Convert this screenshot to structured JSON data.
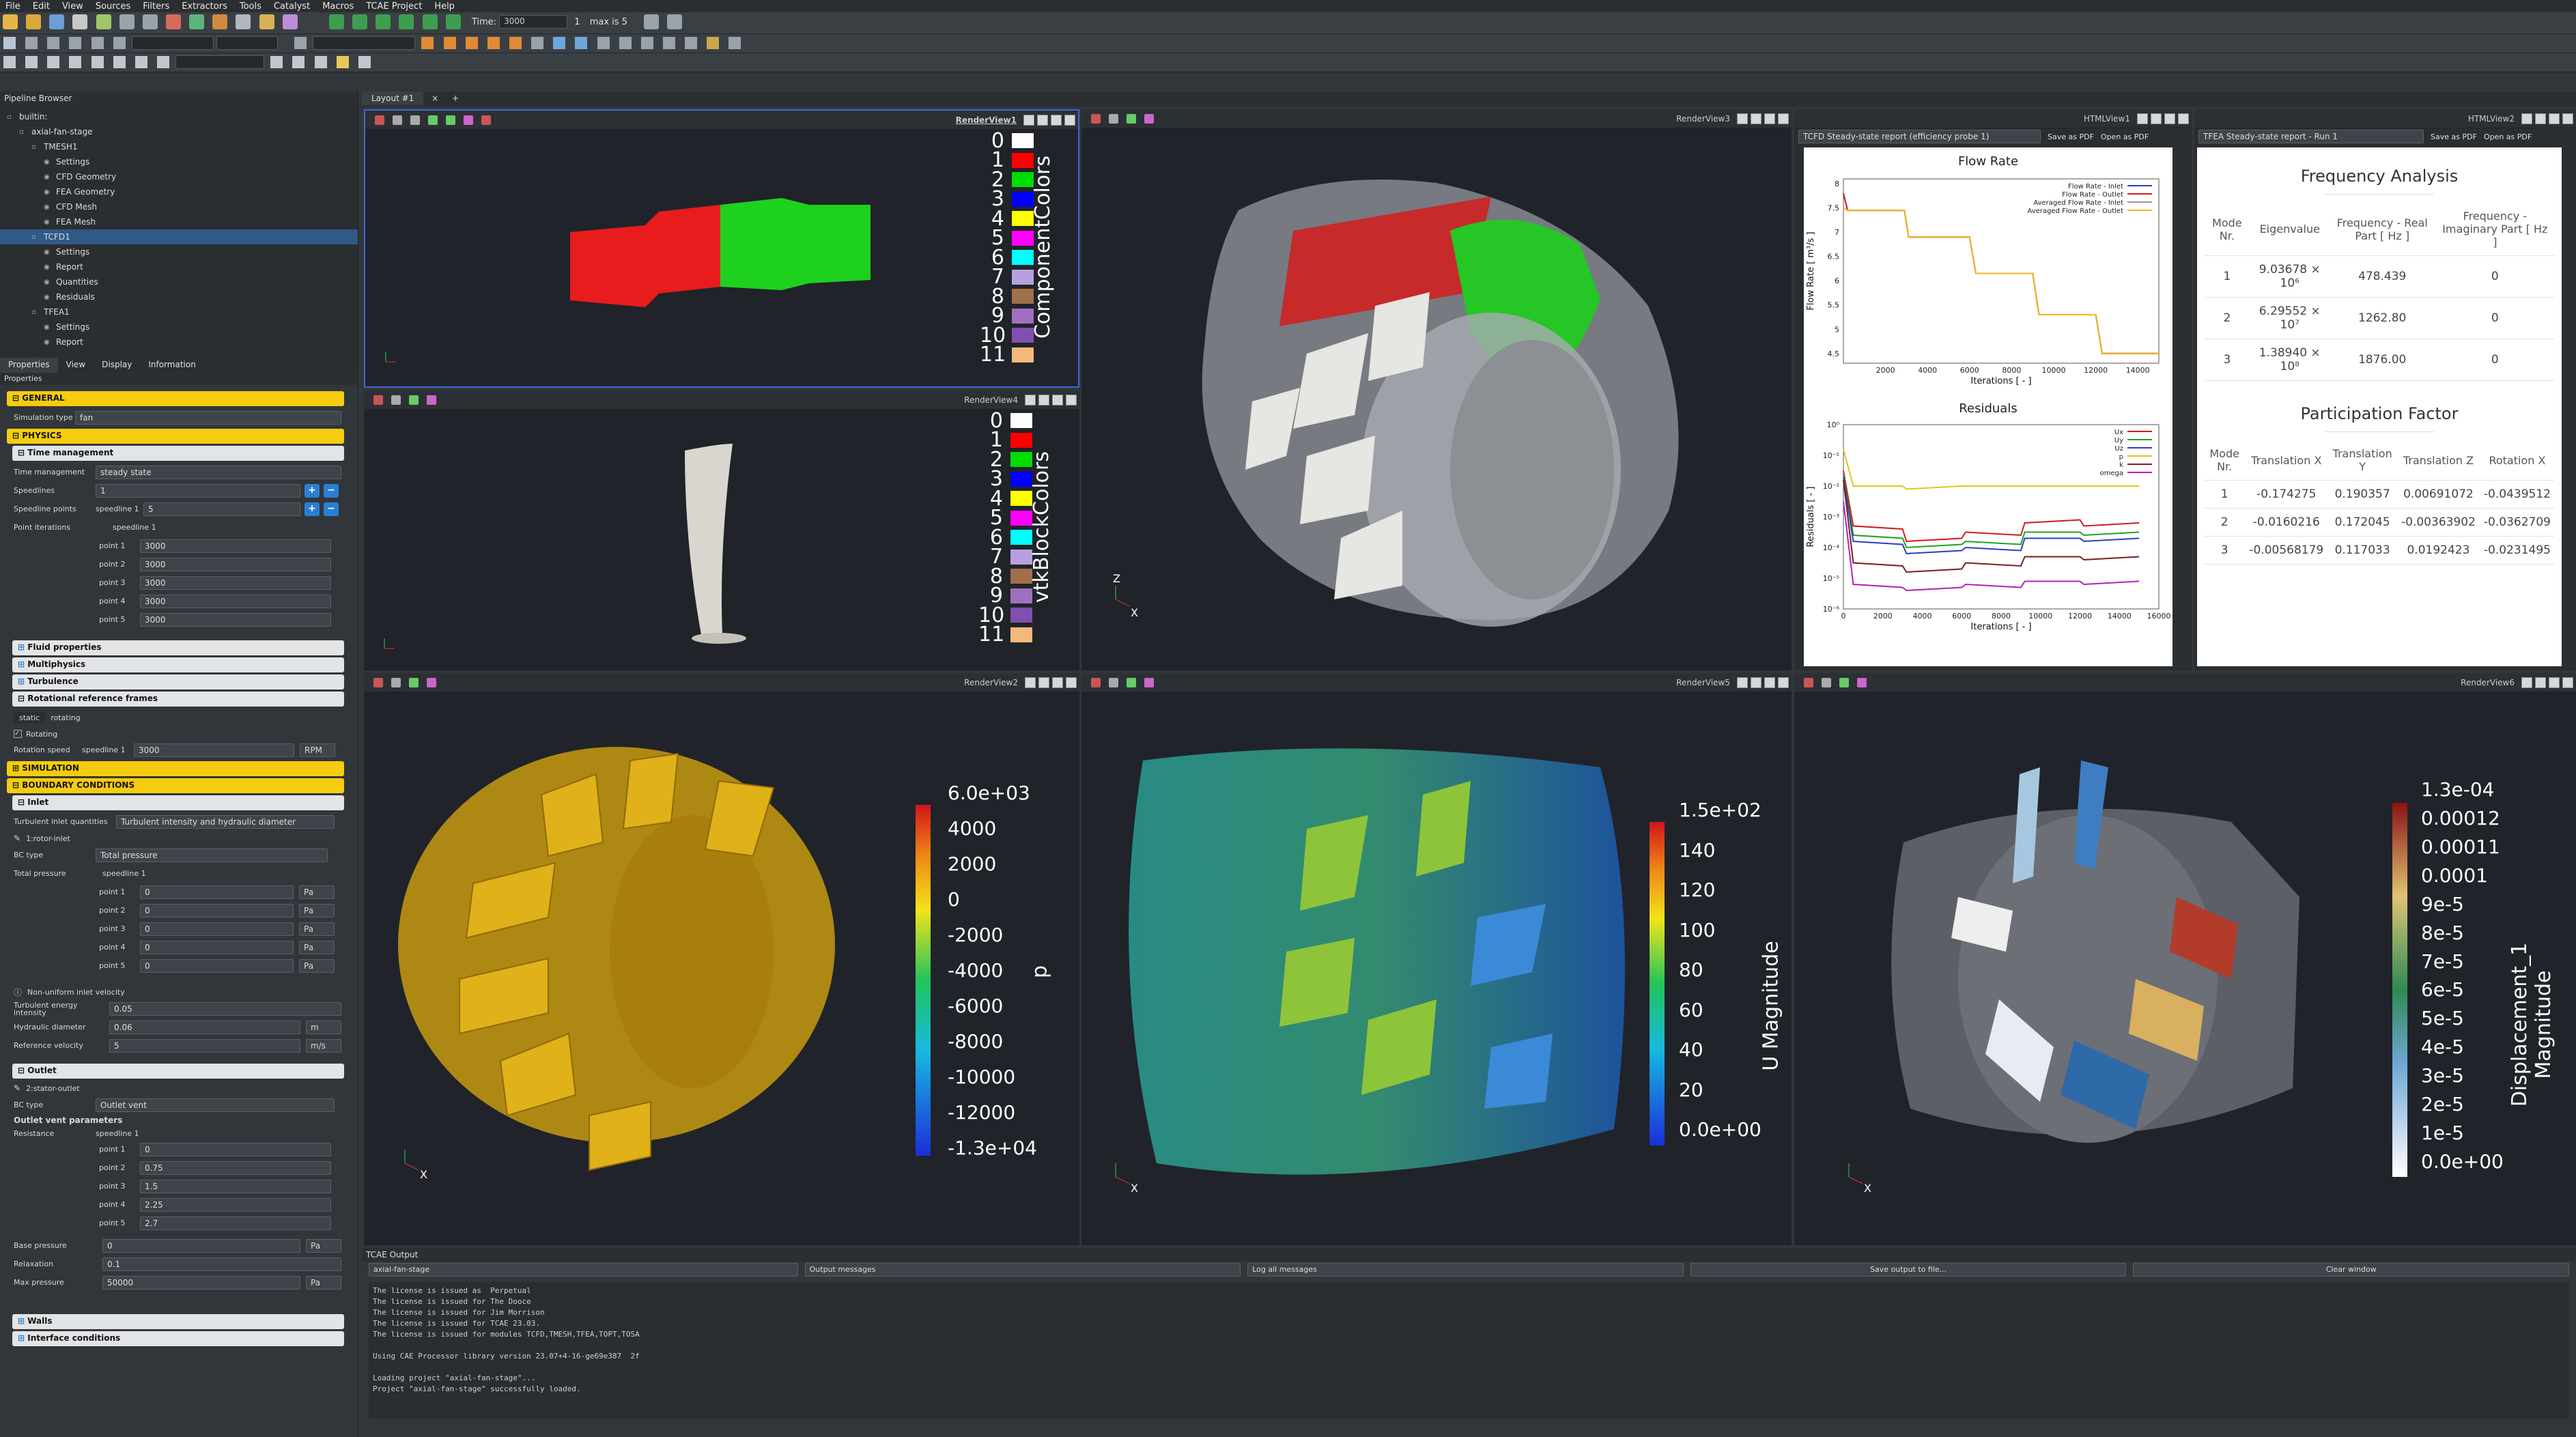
{
  "menu": [
    "File",
    "Edit",
    "View",
    "Sources",
    "Filters",
    "Extractors",
    "Tools",
    "Catalyst",
    "Macros",
    "TCAE Project",
    "Help"
  ],
  "toolbar": {
    "time_label": "Time:",
    "time_value": "3000",
    "time_index": "1",
    "time_max": "max is 5"
  },
  "pipeline": {
    "title": "Pipeline Browser",
    "items": [
      {
        "label": "builtin:",
        "indent": 0
      },
      {
        "label": "axial-fan-stage",
        "indent": 1
      },
      {
        "label": "TMESH1",
        "indent": 2
      },
      {
        "label": "Settings",
        "indent": 3
      },
      {
        "label": "CFD Geometry",
        "indent": 3
      },
      {
        "label": "FEA Geometry",
        "indent": 3
      },
      {
        "label": "CFD Mesh",
        "indent": 3
      },
      {
        "label": "FEA Mesh",
        "indent": 3
      },
      {
        "label": "TCFD1",
        "indent": 2
      },
      {
        "label": "Settings",
        "indent": 3
      },
      {
        "label": "Report",
        "indent": 3
      },
      {
        "label": "Quantities",
        "indent": 3
      },
      {
        "label": "Residuals",
        "indent": 3
      },
      {
        "label": "TFEA1",
        "indent": 2
      },
      {
        "label": "Settings",
        "indent": 3
      },
      {
        "label": "Report",
        "indent": 3
      }
    ]
  },
  "tabs": {
    "items": [
      "Properties",
      "View",
      "Display",
      "Information"
    ],
    "sub": "Properties"
  },
  "props": {
    "general": "GENERAL",
    "sim_type_label": "Simulation type",
    "sim_type": "fan",
    "physics": "PHYSICS",
    "time_mgmt_section": "Time management",
    "time_mgmt_label": "Time management",
    "time_mgmt": "steady state",
    "speedlines_label": "Speedlines",
    "speedlines_value": "1",
    "speedline_points_label": "Speedline points",
    "speedline1_label": "speedline 1",
    "speedline1_value": "5",
    "point_iterations_label": "Point iterations",
    "pi_speedline": "speedline 1",
    "points": [
      {
        "label": "point 1",
        "value": "3000"
      },
      {
        "label": "point 2",
        "value": "3000"
      },
      {
        "label": "point 3",
        "value": "3000"
      },
      {
        "label": "point 4",
        "value": "3000"
      },
      {
        "label": "point 5",
        "value": "3000"
      }
    ],
    "fluid": "Fluid properties",
    "multiphysics": "Multiphysics",
    "turbulence": "Turbulence",
    "rrf": "Rotational reference frames",
    "static": "static",
    "rotating": "rotating",
    "rotating_check": "Rotating",
    "rotation_speed_label": "Rotation speed",
    "rs_speedline": "speedline 1",
    "rs_value": "3000",
    "rs_unit": "RPM",
    "simulation": "SIMULATION",
    "boundary": "BOUNDARY CONDITIONS",
    "inlet": "Inlet",
    "turb_inlet_label": "Turbulent inlet quantities",
    "turb_inlet": "Turbulent intensity and hydraulic diameter",
    "rotor_inlet": "1:rotor-inlet",
    "bc_type_label": "BC type",
    "bc_type": "Total pressure",
    "total_pressure_label": "Total pressure",
    "tp_speedline": "speedline 1",
    "tp_points": [
      {
        "label": "point 1",
        "value": "0"
      },
      {
        "label": "point 2",
        "value": "0"
      },
      {
        "label": "point 3",
        "value": "0"
      },
      {
        "label": "point 4",
        "value": "0"
      },
      {
        "label": "point 5",
        "value": "0"
      }
    ],
    "pa": "Pa",
    "non_uniform": "Non-uniform inlet velocity",
    "tei_label": "Turbulent energy intensity",
    "tei": "0.05",
    "hd_label": "Hydraulic diameter",
    "hd": "0.06",
    "hd_unit": "m",
    "rv_label": "Reference velocity",
    "rv": "5",
    "rv_unit": "m/s",
    "outlet": "Outlet",
    "stator_outlet": "2:stator-outlet",
    "bc_type2": "Outlet vent",
    "ovp": "Outlet vent parameters",
    "resistance": "Resistance",
    "res_speedline": "speedline 1",
    "res_points": [
      {
        "label": "point 1",
        "value": "0"
      },
      {
        "label": "point 2",
        "value": "0.75"
      },
      {
        "label": "point 3",
        "value": "1.5"
      },
      {
        "label": "point 4",
        "value": "2.25"
      },
      {
        "label": "point 5",
        "value": "2.7"
      }
    ],
    "base_pressure_label": "Base pressure",
    "base_pressure": "0",
    "relaxation_label": "Relaxation",
    "relaxation": "0.1",
    "max_pressure_label": "Max pressure",
    "max_pressure": "50000",
    "walls": "Walls",
    "interface": "Interface conditions"
  },
  "layout_tab": "Layout #1",
  "views": {
    "rv1": "RenderView1",
    "rv3": "RenderView3",
    "rv4": "RenderView4",
    "rv2": "RenderView2",
    "rv5": "RenderView5",
    "rv6": "RenderView6",
    "html1": "HTMLView1",
    "html2": "HTMLView2"
  },
  "component_legend": {
    "title": "ComponentColors",
    "entries": [
      "0",
      "1",
      "2",
      "3",
      "4",
      "5",
      "6",
      "7",
      "8",
      "9",
      "10",
      "11"
    ],
    "colors": [
      "#ffffff",
      "#ff0000",
      "#00dd00",
      "#0000ff",
      "#ffff00",
      "#ff00ff",
      "#00ffff",
      "#b8a0e0",
      "#a0704a",
      "#a070c0",
      "#7f50b0",
      "#f4b87a"
    ]
  },
  "block_legend": {
    "title": "vtkBlockColors",
    "entries": [
      "0",
      "1",
      "2",
      "3",
      "4",
      "5",
      "6",
      "7",
      "8",
      "9",
      "10",
      "11"
    ]
  },
  "colorbar_p": {
    "title": "p",
    "labels": [
      "6.0e+03",
      "4000",
      "2000",
      "0",
      "-2000",
      "-4000",
      "-6000",
      "-8000",
      "-10000",
      "-12000",
      "-1.3e+04"
    ]
  },
  "colorbar_u": {
    "title": "U Magnitude",
    "labels": [
      "1.5e+02",
      "140",
      "120",
      "100",
      "80",
      "60",
      "40",
      "20",
      "0.0e+00"
    ]
  },
  "colorbar_d": {
    "title": "Displacement_1 Magnitude",
    "labels": [
      "1.3e-04",
      "0.00012",
      "0.00011",
      "0.0001",
      "9e-5",
      "8e-5",
      "7e-5",
      "6e-5",
      "5e-5",
      "4e-5",
      "3e-5",
      "2e-5",
      "1e-5",
      "0.0e+00"
    ]
  },
  "tcfd_report": {
    "select": "TCFD Steady-state report (efficiency probe 1)",
    "save": "Save as PDF",
    "open": "Open as PDF",
    "flow_title": "Flow Rate",
    "flow_ylabel": "Flow Rate [ m³/s ]",
    "flow_xlabel": "Iterations [ - ]",
    "flow_legend": [
      "Flow Rate - Inlet",
      "Flow Rate - Outlet",
      "Averaged Flow Rate - Inlet",
      "Averaged Flow Rate - Outlet"
    ],
    "flow_yticks": [
      "8",
      "7.5",
      "7",
      "6.5",
      "6",
      "5.5",
      "5",
      "4.5"
    ],
    "flow_xticks": [
      "2000",
      "4000",
      "6000",
      "8000",
      "10000",
      "12000",
      "14000"
    ],
    "res_title": "Residuals",
    "res_ylabel": "Residuals [ - ]",
    "res_xlabel": "Iterations [ - ]",
    "res_legend": [
      "Ux",
      "Uy",
      "Uz",
      "p",
      "k",
      "omega"
    ],
    "res_yticks": [
      "10⁰",
      "10⁻¹",
      "10⁻²",
      "10⁻³",
      "10⁻⁴",
      "10⁻⁵",
      "10⁻⁶"
    ],
    "res_xticks": [
      "0",
      "2000",
      "4000",
      "6000",
      "8000",
      "10000",
      "12000",
      "14000",
      "16000"
    ]
  },
  "chart_data": [
    {
      "type": "line",
      "title": "Flow Rate",
      "xlabel": "Iterations [ - ]",
      "ylabel": "Flow Rate [ m³/s ]",
      "xlim": [
        0,
        15000
      ],
      "ylim": [
        4.3,
        8.1
      ],
      "series": [
        {
          "name": "Flow Rate - Inlet",
          "x": [
            0,
            200,
            1500,
            2900,
            3100,
            6000,
            6300,
            9000,
            9300,
            12000,
            12300,
            15000
          ],
          "y": [
            7.8,
            7.45,
            7.45,
            7.45,
            6.9,
            6.9,
            6.15,
            6.15,
            5.3,
            5.3,
            4.5,
            4.5
          ]
        },
        {
          "name": "Flow Rate - Outlet",
          "x": [
            0,
            200,
            1500,
            2900,
            3100,
            6000,
            6300,
            9000,
            9300,
            12000,
            12300,
            15000
          ],
          "y": [
            7.8,
            7.45,
            7.45,
            7.45,
            6.9,
            6.9,
            6.15,
            6.15,
            5.3,
            5.3,
            4.5,
            4.5
          ]
        },
        {
          "name": "Averaged Flow Rate - Inlet",
          "x": [
            0,
            200,
            1500,
            2900,
            3100,
            6000,
            6300,
            9000,
            9300,
            12000,
            12300,
            15000
          ],
          "y": [
            7.5,
            7.45,
            7.45,
            7.45,
            6.9,
            6.9,
            6.15,
            6.15,
            5.3,
            5.3,
            4.5,
            4.5
          ]
        },
        {
          "name": "Averaged Flow Rate - Outlet",
          "x": [
            0,
            200,
            1500,
            2900,
            3100,
            6000,
            6300,
            9000,
            9300,
            12000,
            12300,
            15000
          ],
          "y": [
            7.5,
            7.45,
            7.45,
            7.45,
            6.9,
            6.9,
            6.15,
            6.15,
            5.3,
            5.3,
            4.5,
            4.5
          ]
        }
      ]
    },
    {
      "type": "line",
      "title": "Residuals",
      "xlabel": "Iterations [ - ]",
      "ylabel": "Residuals [ - ]",
      "xlim": [
        0,
        16000
      ],
      "ylim": [
        -6,
        0
      ],
      "yscale": "log",
      "series": [
        {
          "name": "Ux",
          "x": [
            0,
            500,
            3000,
            3200,
            6000,
            6200,
            9000,
            9200,
            12000,
            12200,
            15000
          ],
          "y": [
            -1.5,
            -3.3,
            -3.4,
            -3.8,
            -3.7,
            -3.5,
            -3.6,
            -3.2,
            -3.1,
            -3.3,
            -3.2
          ]
        },
        {
          "name": "Uy",
          "x": [
            0,
            500,
            3000,
            3200,
            6000,
            6200,
            9000,
            9200,
            12000,
            12200,
            15000
          ],
          "y": [
            -1.6,
            -3.6,
            -3.7,
            -4.0,
            -3.9,
            -3.8,
            -3.9,
            -3.5,
            -3.5,
            -3.6,
            -3.5
          ]
        },
        {
          "name": "Uz",
          "x": [
            0,
            500,
            3000,
            3200,
            6000,
            6200,
            9000,
            9200,
            12000,
            12200,
            15000
          ],
          "y": [
            -1.7,
            -3.8,
            -3.9,
            -4.2,
            -4.1,
            -4.0,
            -4.1,
            -3.7,
            -3.7,
            -3.8,
            -3.7
          ]
        },
        {
          "name": "p",
          "x": [
            0,
            500,
            3000,
            3200,
            6000,
            6200,
            9000,
            9200,
            12000,
            12200,
            15000
          ],
          "y": [
            -0.8,
            -2.0,
            -2.0,
            -2.1,
            -2.0,
            -2.0,
            -2.0,
            -2.0,
            -2.0,
            -2.0,
            -2.0
          ]
        },
        {
          "name": "k",
          "x": [
            0,
            500,
            3000,
            3200,
            6000,
            6200,
            9000,
            9200,
            12000,
            12200,
            15000
          ],
          "y": [
            -1.8,
            -4.5,
            -4.6,
            -4.8,
            -4.7,
            -4.5,
            -4.6,
            -4.3,
            -4.3,
            -4.4,
            -4.3
          ]
        },
        {
          "name": "omega",
          "x": [
            0,
            500,
            3000,
            3200,
            6000,
            6200,
            9000,
            9200,
            12000,
            12200,
            15000
          ],
          "y": [
            -2.5,
            -5.2,
            -5.3,
            -5.4,
            -5.3,
            -5.2,
            -5.3,
            -5.1,
            -5.1,
            -5.2,
            -5.1
          ]
        }
      ]
    }
  ],
  "tfea_report": {
    "select": "TFEA Steady-state report - Run 1",
    "save": "Save as PDF",
    "open": "Open as PDF",
    "freq_title": "Frequency Analysis",
    "freq_headers": [
      "Mode Nr.",
      "Eigenvalue",
      "Frequency - Real Part [ Hz ]",
      "Frequency - Imaginary Part [ Hz ]"
    ],
    "freq_rows": [
      [
        "1",
        "9.03678 × 10⁶",
        "478.439",
        "0"
      ],
      [
        "2",
        "6.29552 × 10⁷",
        "1262.80",
        "0"
      ],
      [
        "3",
        "1.38940 × 10⁸",
        "1876.00",
        "0"
      ]
    ],
    "part_title": "Participation Factor",
    "part_headers": [
      "Mode Nr.",
      "Translation X",
      "Translation Y",
      "Translation Z",
      "Rotation X"
    ],
    "part_rows": [
      [
        "1",
        "-0.174275",
        "0.190357",
        "0.00691072",
        "-0.0439512"
      ],
      [
        "2",
        "-0.0160216",
        "0.172045",
        "-0.00363902",
        "-0.0362709"
      ],
      [
        "3",
        "-0.00568179",
        "0.117033",
        "0.0192423",
        "-0.0231495"
      ]
    ]
  },
  "output": {
    "title": "TCAE Output",
    "source": "axial-fan-stage",
    "type": "Output messages",
    "level": "Log all messages",
    "save": "Save output to file...",
    "clear": "Clear window",
    "lines": [
      "The license is issued as  Perpetual",
      "The license is issued for The Dooce",
      "The license is issued for Jim Morrison",
      "The license is issued for TCAE 23.03.",
      "The license is issued for modules TCFD,TMESH,TFEA,TOPT,TOSA",
      "",
      "Using CAE Processor library version 23.07+4-16-ge69e387  2f",
      "",
      "Loading project \"axial-fan-stage\"...",
      "Project \"axial-fan-stage\" successfully loaded."
    ]
  },
  "axes": {
    "x": "X",
    "y": "Y",
    "z": "Z"
  }
}
